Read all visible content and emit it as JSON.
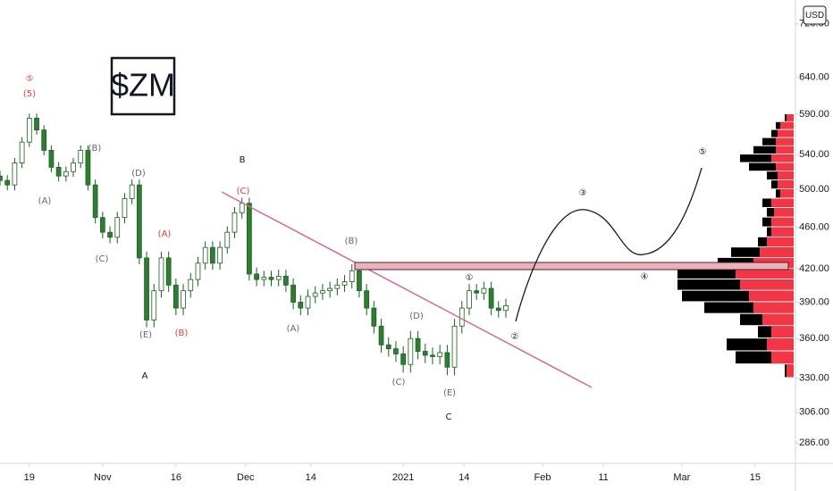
{
  "chart_data": {
    "type": "candlestick",
    "title": "$ZM",
    "currency": "USD",
    "log_scale": true,
    "x": [
      -4,
      -3,
      -2,
      -1,
      0,
      1,
      2,
      3,
      4,
      5,
      6,
      7,
      8,
      9,
      10,
      11,
      12,
      13,
      14,
      15,
      16,
      17,
      18,
      19,
      20,
      21,
      22,
      23,
      24,
      25,
      26,
      27,
      28,
      29,
      30,
      31,
      32,
      33,
      34,
      35,
      36,
      37,
      38,
      39,
      40,
      41,
      42,
      43,
      44,
      45,
      46,
      47,
      48,
      49,
      50,
      51,
      52,
      53,
      54,
      55,
      56,
      57,
      58,
      59,
      60,
      61,
      62,
      63,
      64,
      65
    ],
    "open": [
      515,
      510,
      505,
      530,
      555,
      585,
      570,
      545,
      525,
      515,
      520,
      530,
      545,
      505,
      470,
      455,
      450,
      470,
      490,
      505,
      430,
      375,
      400,
      430,
      405,
      385,
      400,
      410,
      425,
      440,
      425,
      440,
      455,
      475,
      485,
      415,
      410,
      412,
      410,
      413,
      405,
      390,
      385,
      395,
      398,
      400,
      402,
      405,
      408,
      418,
      400,
      385,
      370,
      355,
      352,
      348,
      340,
      360,
      350,
      347,
      346,
      349,
      338,
      370,
      385,
      400,
      398,
      402,
      385,
      383
    ],
    "high": [
      521,
      516,
      536,
      561,
      591,
      591,
      576,
      551,
      531,
      526,
      536,
      551,
      551,
      511,
      476,
      461,
      476,
      496,
      511,
      511,
      436,
      406,
      436,
      436,
      411,
      406,
      416,
      431,
      446,
      446,
      446,
      461,
      481,
      491,
      491,
      421,
      418,
      418,
      419,
      419,
      411,
      396,
      401,
      404,
      406,
      408,
      411,
      414,
      424,
      424,
      406,
      391,
      376,
      361,
      358,
      354,
      366,
      366,
      356,
      353,
      355,
      355,
      376,
      391,
      406,
      406,
      408,
      408,
      391,
      393
    ],
    "low": [
      504,
      499,
      499,
      524,
      549,
      564,
      539,
      519,
      509,
      509,
      514,
      524,
      499,
      464,
      449,
      444,
      444,
      464,
      484,
      424,
      369,
      369,
      394,
      399,
      379,
      379,
      394,
      404,
      419,
      419,
      419,
      434,
      449,
      469,
      409,
      404,
      404,
      404,
      404,
      399,
      384,
      379,
      379,
      389,
      392,
      394,
      396,
      399,
      402,
      394,
      379,
      364,
      349,
      346,
      342,
      334,
      334,
      344,
      341,
      340,
      340,
      332,
      332,
      364,
      379,
      392,
      392,
      379,
      377,
      377
    ],
    "close": [
      510,
      505,
      530,
      555,
      585,
      570,
      545,
      525,
      515,
      520,
      530,
      545,
      505,
      470,
      455,
      450,
      470,
      490,
      505,
      430,
      375,
      400,
      430,
      405,
      385,
      400,
      410,
      425,
      440,
      425,
      440,
      455,
      475,
      485,
      415,
      410,
      412,
      410,
      413,
      405,
      390,
      385,
      395,
      398,
      400,
      402,
      405,
      408,
      418,
      400,
      385,
      370,
      355,
      352,
      348,
      340,
      360,
      350,
      347,
      346,
      349,
      338,
      370,
      385,
      400,
      398,
      402,
      385,
      383,
      387
    ],
    "up_color": "#ffffff",
    "down_color": "#2e7d32",
    "wick_color": "#1b5e20",
    "xlim": [
      -4,
      104.5
    ],
    "xticks": [
      {
        "value": 0,
        "label": "19"
      },
      {
        "value": 10,
        "label": "Nov"
      },
      {
        "value": 20,
        "label": "16"
      },
      {
        "value": 29.5,
        "label": "Dec"
      },
      {
        "value": 38.4,
        "label": "14"
      },
      {
        "value": 51,
        "label": "2021"
      },
      {
        "value": 59.3,
        "label": "14"
      },
      {
        "value": 70,
        "label": "Feb"
      },
      {
        "value": 78.3,
        "label": "11"
      },
      {
        "value": 89,
        "label": "Mar"
      },
      {
        "value": 99,
        "label": "15"
      }
    ],
    "ylim": [
      274,
      759
    ],
    "yticks": [
      {
        "value": 720,
        "label": "720.00"
      },
      {
        "value": 640,
        "label": "640.00"
      },
      {
        "value": 590,
        "label": "590.00"
      },
      {
        "value": 540,
        "label": "540.00"
      },
      {
        "value": 500,
        "label": "500.00"
      },
      {
        "value": 460,
        "label": "460.00"
      },
      {
        "value": 420,
        "label": "420.00"
      },
      {
        "value": 390,
        "label": "390.00"
      },
      {
        "value": 360,
        "label": "360.00"
      },
      {
        "value": 330,
        "label": "330.00"
      },
      {
        "value": 306,
        "label": "306.00"
      },
      {
        "value": 286,
        "label": "286.00"
      }
    ],
    "volume_profile": {
      "prices": [
        585,
        575,
        565,
        555,
        545,
        535,
        525,
        515,
        505,
        495,
        485,
        475,
        465,
        455,
        445,
        435,
        425,
        415,
        405,
        395,
        385,
        375,
        365,
        355,
        345,
        335
      ],
      "total": [
        10,
        20,
        25,
        35,
        45,
        60,
        50,
        30,
        25,
        20,
        35,
        30,
        35,
        30,
        40,
        70,
        85,
        130,
        130,
        125,
        100,
        60,
        40,
        75,
        65,
        10
      ],
      "red": [
        8,
        15,
        18,
        20,
        20,
        25,
        20,
        18,
        18,
        15,
        25,
        22,
        25,
        25,
        30,
        38,
        45,
        65,
        60,
        50,
        45,
        35,
        25,
        30,
        25,
        8
      ],
      "total_color": "#000000",
      "red_color": "#f23645"
    },
    "annotations": [
      {
        "text": "⑤",
        "color": "#e53935"
      },
      {
        "text": "(5)",
        "color": "#e53935"
      },
      {
        "text": "(A)",
        "color": "#666666"
      },
      {
        "text": "(B)",
        "color": "#666666"
      },
      {
        "text": "(C)",
        "color": "#666666"
      },
      {
        "text": "(D)",
        "color": "#666666"
      },
      {
        "text": "(E)",
        "color": "#666666"
      },
      {
        "text": "(A)",
        "color": "#e53935"
      },
      {
        "text": "(B)",
        "color": "#e53935"
      },
      {
        "text": "(C)",
        "color": "#e53935"
      },
      {
        "text": "A",
        "color": "#131722"
      },
      {
        "text": "B",
        "color": "#131722"
      },
      {
        "text": "(A)",
        "color": "#666666"
      },
      {
        "text": "(B)",
        "color": "#666666"
      },
      {
        "text": "(C)",
        "color": "#666666"
      },
      {
        "text": "(D)",
        "color": "#666666"
      },
      {
        "text": "(E)",
        "color": "#666666"
      },
      {
        "text": "C",
        "color": "#131722"
      },
      {
        "text": "①",
        "color": "#131722"
      },
      {
        "text": "②",
        "color": "#131722"
      },
      {
        "text": "③",
        "color": "#131722"
      },
      {
        "text": "④",
        "color": "#131722"
      },
      {
        "text": "⑤",
        "color": "#131722"
      }
    ]
  }
}
